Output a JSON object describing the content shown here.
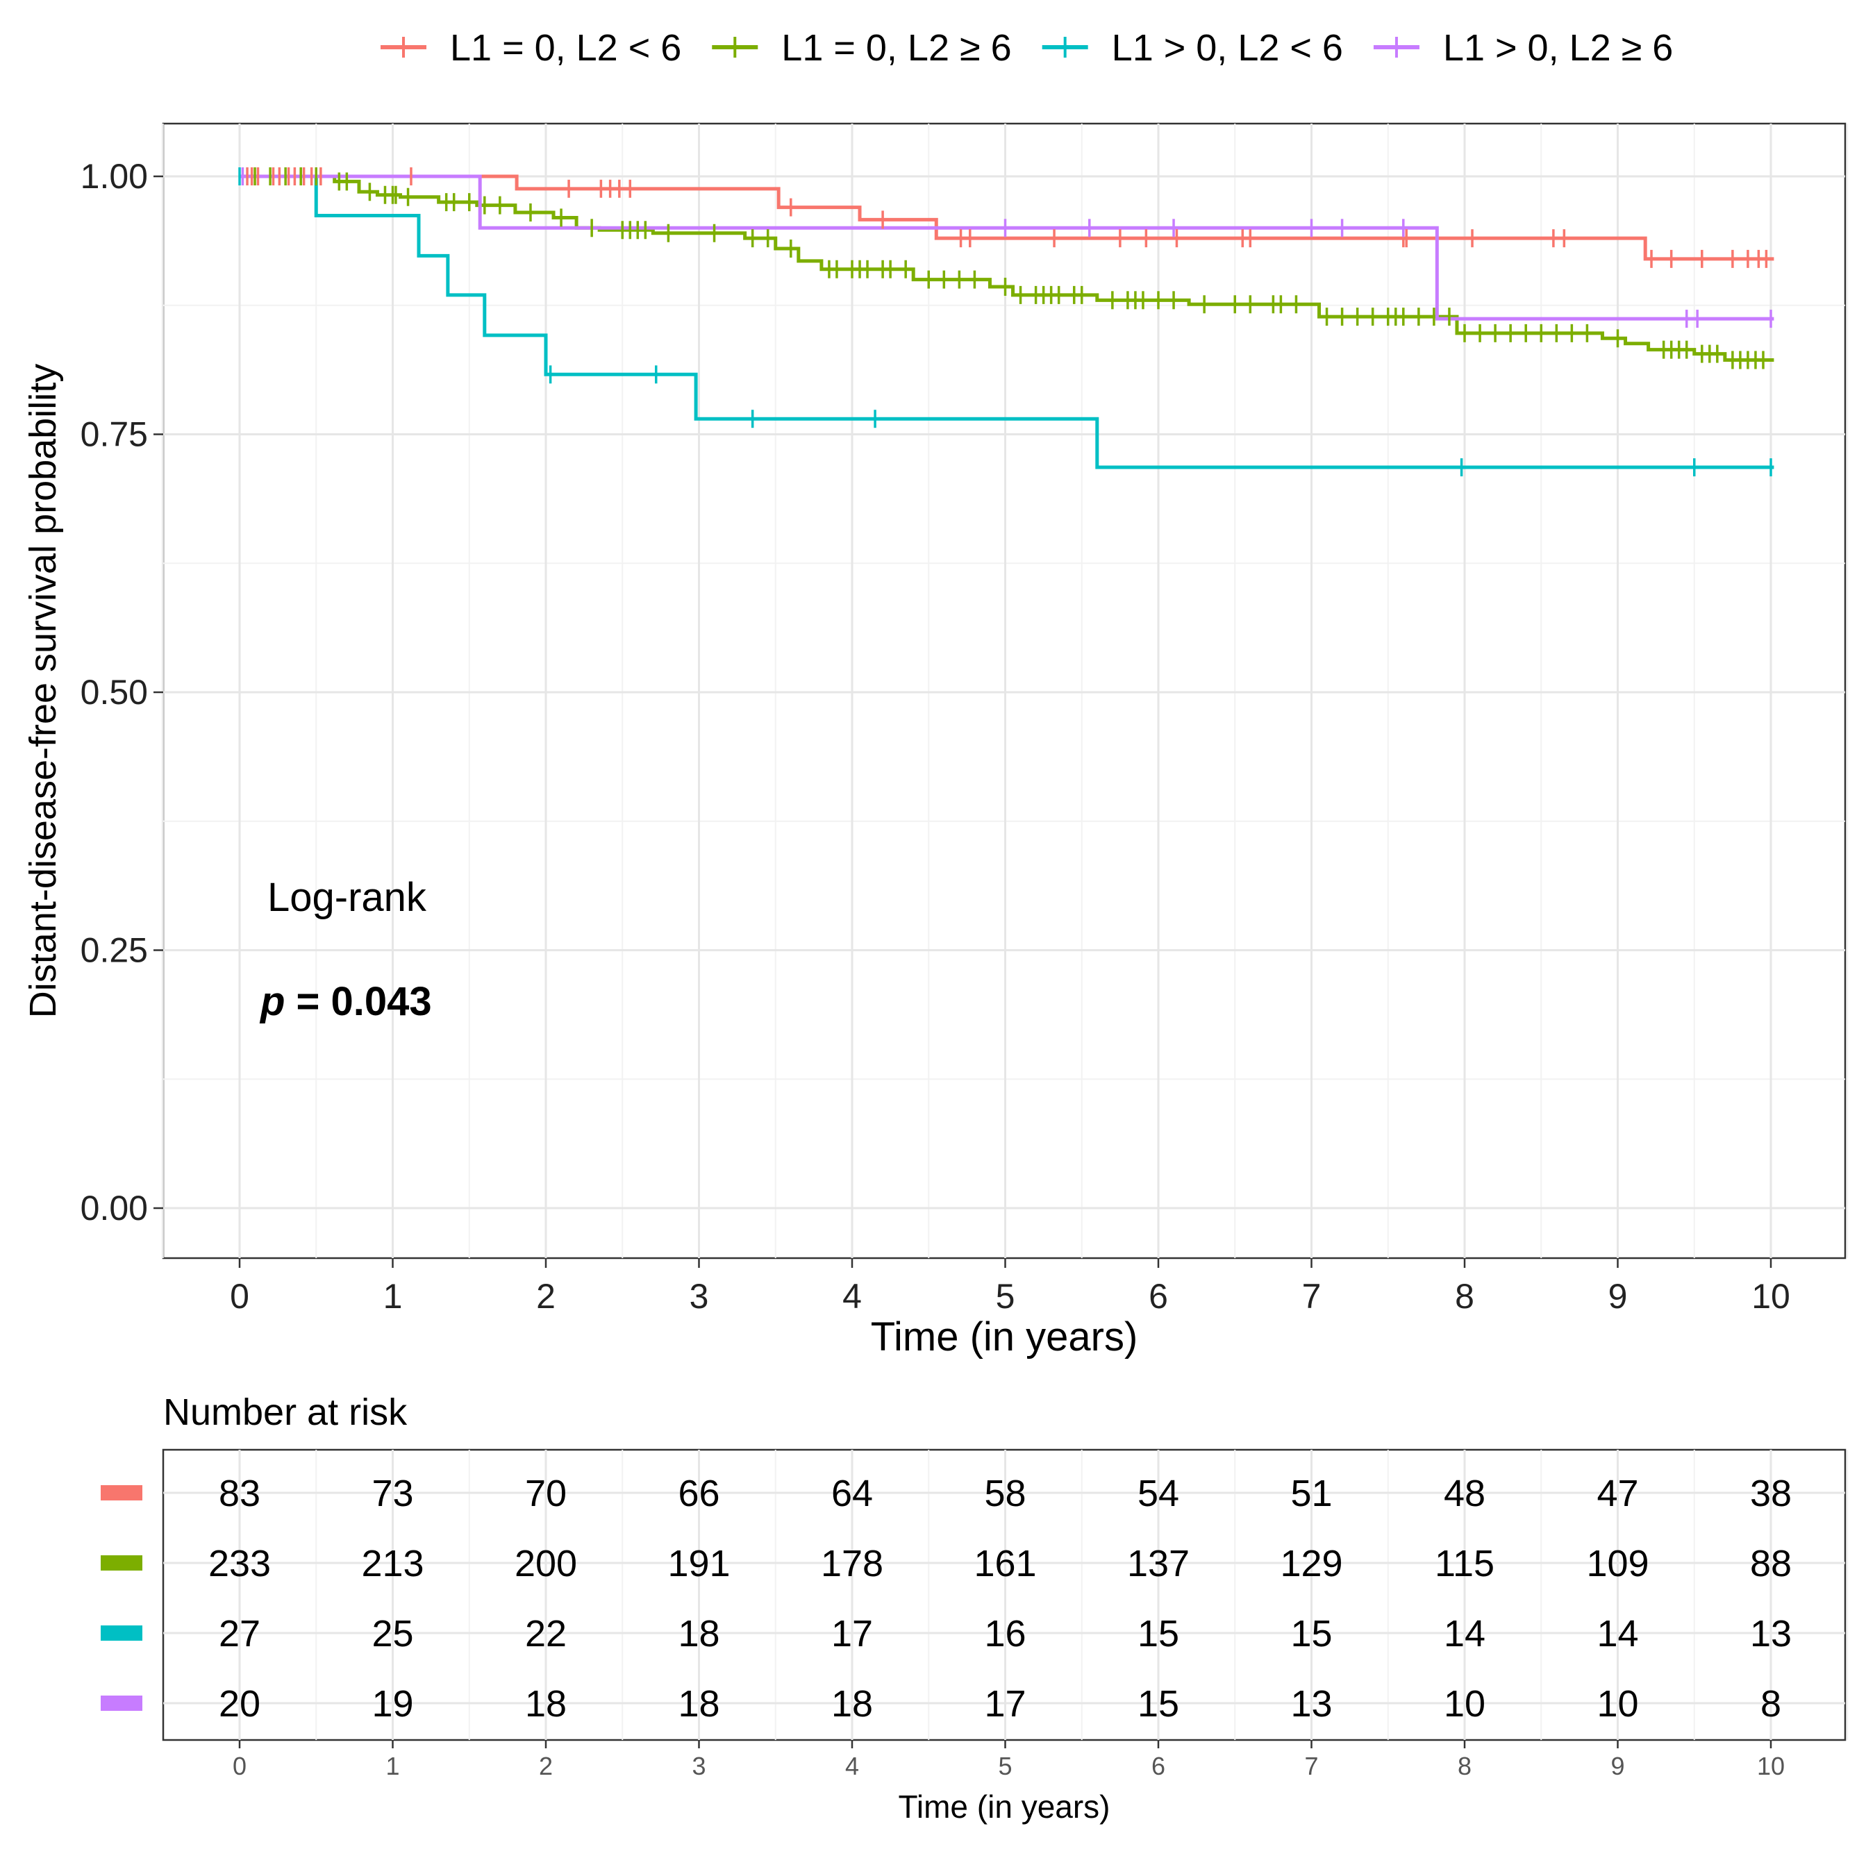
{
  "chart_data": {
    "type": "line",
    "subtype": "kaplan-meier",
    "xlabel": "Time (in years)",
    "ylabel": "Distant-disease-free survival probability",
    "xlim": [
      0,
      10
    ],
    "ylim": [
      0,
      1
    ],
    "x_ticks": [
      0,
      1,
      2,
      3,
      4,
      5,
      6,
      7,
      8,
      9,
      10
    ],
    "y_ticks": [
      "0.00",
      "0.25",
      "0.50",
      "0.75",
      "1.00"
    ],
    "legend_position": "top",
    "annotation": {
      "test_label": "Log-rank",
      "p_symbol": "p",
      "p_rest": " = 0.043"
    },
    "series": [
      {
        "name": "L1 = 0, L2 < 6",
        "color": "#F8766D",
        "steps": [
          [
            0,
            1.0
          ],
          [
            1.81,
            0.988
          ],
          [
            3.52,
            0.97
          ],
          [
            4.05,
            0.958
          ],
          [
            4.55,
            0.94
          ],
          [
            5.05,
            0.94
          ],
          [
            9.18,
            0.92
          ],
          [
            10.02,
            0.92
          ]
        ],
        "censor": [
          0.05,
          0.08,
          0.12,
          0.22,
          0.26,
          0.32,
          0.36,
          0.42,
          0.47,
          0.53,
          1.12,
          2.15,
          2.36,
          2.42,
          2.48,
          2.55,
          3.6,
          4.2,
          4.71,
          4.77,
          5.32,
          5.75,
          5.92,
          6.12,
          6.55,
          6.6,
          7.6,
          7.62,
          8.05,
          8.58,
          8.65,
          9.22,
          9.35,
          9.55,
          9.75,
          9.85,
          9.92,
          9.97
        ]
      },
      {
        "name": "L1 = 0, L2 ≥ 6",
        "color": "#7CAE00",
        "steps": [
          [
            0,
            1.0
          ],
          [
            0.62,
            0.995
          ],
          [
            0.78,
            0.985
          ],
          [
            0.9,
            0.982
          ],
          [
            1.05,
            0.98
          ],
          [
            1.3,
            0.975
          ],
          [
            1.55,
            0.972
          ],
          [
            1.8,
            0.965
          ],
          [
            2.05,
            0.96
          ],
          [
            2.2,
            0.95
          ],
          [
            2.35,
            0.948
          ],
          [
            2.7,
            0.945
          ],
          [
            3.3,
            0.94
          ],
          [
            3.5,
            0.93
          ],
          [
            3.65,
            0.918
          ],
          [
            3.8,
            0.91
          ],
          [
            4.4,
            0.9
          ],
          [
            4.9,
            0.893
          ],
          [
            5.05,
            0.885
          ],
          [
            5.6,
            0.88
          ],
          [
            6.2,
            0.876
          ],
          [
            7.05,
            0.864
          ],
          [
            7.95,
            0.848
          ],
          [
            8.9,
            0.843
          ],
          [
            9.05,
            0.838
          ],
          [
            9.2,
            0.832
          ],
          [
            9.5,
            0.828
          ],
          [
            9.7,
            0.822
          ],
          [
            10.02,
            0.822
          ]
        ],
        "censor": [
          0.1,
          0.2,
          0.3,
          0.4,
          0.5,
          0.65,
          0.7,
          0.85,
          0.95,
          1.0,
          1.02,
          1.1,
          1.35,
          1.4,
          1.5,
          1.6,
          1.7,
          1.9,
          2.1,
          2.3,
          2.5,
          2.55,
          2.6,
          2.65,
          2.8,
          3.1,
          3.35,
          3.45,
          3.6,
          3.85,
          3.9,
          4.0,
          4.05,
          4.1,
          4.2,
          4.25,
          4.35,
          4.5,
          4.6,
          4.7,
          4.8,
          5.0,
          5.1,
          5.2,
          5.25,
          5.3,
          5.35,
          5.45,
          5.5,
          5.7,
          5.8,
          5.85,
          5.9,
          6.0,
          6.1,
          6.3,
          6.5,
          6.6,
          6.75,
          6.8,
          6.9,
          7.1,
          7.2,
          7.3,
          7.4,
          7.5,
          7.55,
          7.6,
          7.7,
          7.8,
          7.9,
          8.0,
          8.1,
          8.2,
          8.3,
          8.4,
          8.5,
          8.6,
          8.7,
          8.8,
          9.0,
          9.3,
          9.35,
          9.4,
          9.45,
          9.55,
          9.6,
          9.65,
          9.75,
          9.8,
          9.85,
          9.9,
          9.95
        ]
      },
      {
        "name": "L1 > 0, L2 < 6",
        "color": "#00BFC4",
        "steps": [
          [
            0,
            1.0
          ],
          [
            0.5,
            0.962
          ],
          [
            1.17,
            0.923
          ],
          [
            1.36,
            0.885
          ],
          [
            1.6,
            0.846
          ],
          [
            2.0,
            0.808
          ],
          [
            2.98,
            0.765
          ],
          [
            5.6,
            0.718
          ],
          [
            10.02,
            0.718
          ]
        ],
        "censor": [
          0.0,
          2.03,
          2.72,
          3.35,
          4.15,
          7.98,
          9.5,
          10.0
        ]
      },
      {
        "name": "L1 > 0, L2 ≥ 6",
        "color": "#C77CFF",
        "steps": [
          [
            0,
            1.0
          ],
          [
            1.57,
            0.95
          ],
          [
            7.82,
            0.862
          ],
          [
            10.02,
            0.862
          ]
        ],
        "censor": [
          0.02,
          5.0,
          5.55,
          6.1,
          7.0,
          7.2,
          7.6,
          9.45,
          9.52,
          10.0
        ]
      }
    ],
    "risk_table": {
      "title": "Number at risk",
      "xlabel": "Time (in years)",
      "times": [
        0,
        1,
        2,
        3,
        4,
        5,
        6,
        7,
        8,
        9,
        10
      ],
      "rows": [
        [
          83,
          73,
          70,
          66,
          64,
          58,
          54,
          51,
          48,
          47,
          38
        ],
        [
          233,
          213,
          200,
          191,
          178,
          161,
          137,
          129,
          115,
          109,
          88
        ],
        [
          27,
          25,
          22,
          18,
          17,
          16,
          15,
          15,
          14,
          14,
          13
        ],
        [
          20,
          19,
          18,
          18,
          18,
          17,
          15,
          13,
          10,
          10,
          8
        ]
      ]
    }
  }
}
